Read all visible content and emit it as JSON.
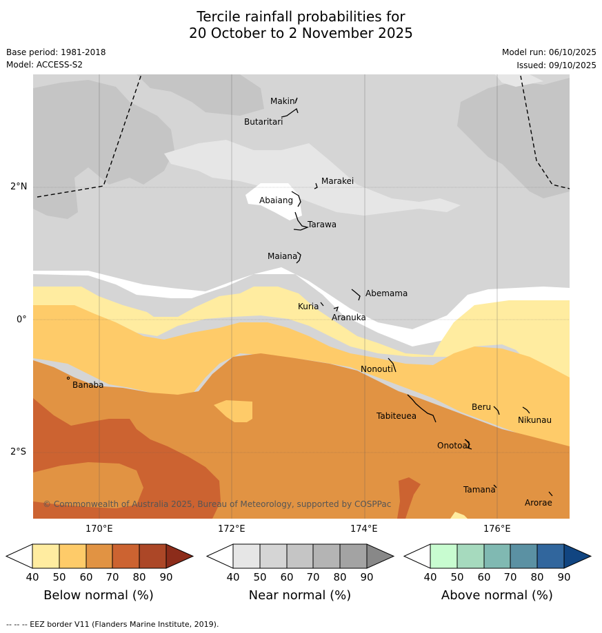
{
  "title": {
    "line1": "Tercile rainfall probabilities for",
    "line2": "20 October to 2 November 2025"
  },
  "meta": {
    "base_period": "Base period: 1981-2018",
    "model": "Model: ACCESS-S2",
    "model_run": "Model run: 06/10/2025",
    "issued": "Issued: 09/10/2025"
  },
  "map": {
    "lat_labels": [
      "2°N",
      "0°",
      "2°S"
    ],
    "lon_labels": [
      "170°E",
      "172°E",
      "174°E",
      "176°E"
    ],
    "places": {
      "makin": "Makin",
      "butaritari": "Butaritari",
      "marakei": "Marakei",
      "abaiang": "Abaiang",
      "tarawa": "Tarawa",
      "maiana": "Maiana",
      "abemama": "Abemama",
      "kuria": "Kuria",
      "aranuka": "Aranuka",
      "nonouti": "Nonouti",
      "banaba": "Banaba",
      "beru": "Beru",
      "tabiteuea": "Tabiteuea",
      "nikunau": "Nikunau",
      "onotoa": "Onotoa",
      "tamana": "Tamana",
      "arorae": "Arorae"
    },
    "copyright": "© Commonwealth of Australia 2025, Bureau of Meteorology, supported by COSPPac"
  },
  "colorbars": {
    "below": {
      "title": "Below normal (%)",
      "colors": [
        "#ffeca0",
        "#fecb69",
        "#e19343",
        "#cc6331",
        "#ac4727",
        "#8c2c1a"
      ]
    },
    "near": {
      "title": "Near normal (%)",
      "colors": [
        "#e6e6e6",
        "#d5d5d5",
        "#c5c5c5",
        "#b4b4b4",
        "#a3a3a3",
        "#888888"
      ]
    },
    "above": {
      "title": "Above normal (%)",
      "colors": [
        "#c8fcd0",
        "#a6dabe",
        "#80b9b2",
        "#5b91a3",
        "#31669d",
        "#114581"
      ]
    },
    "ticks": [
      "40",
      "50",
      "60",
      "70",
      "80",
      "90"
    ]
  },
  "footer": "--  --  -- EEZ border V11 (Flanders Marine Institute, 2019)."
}
